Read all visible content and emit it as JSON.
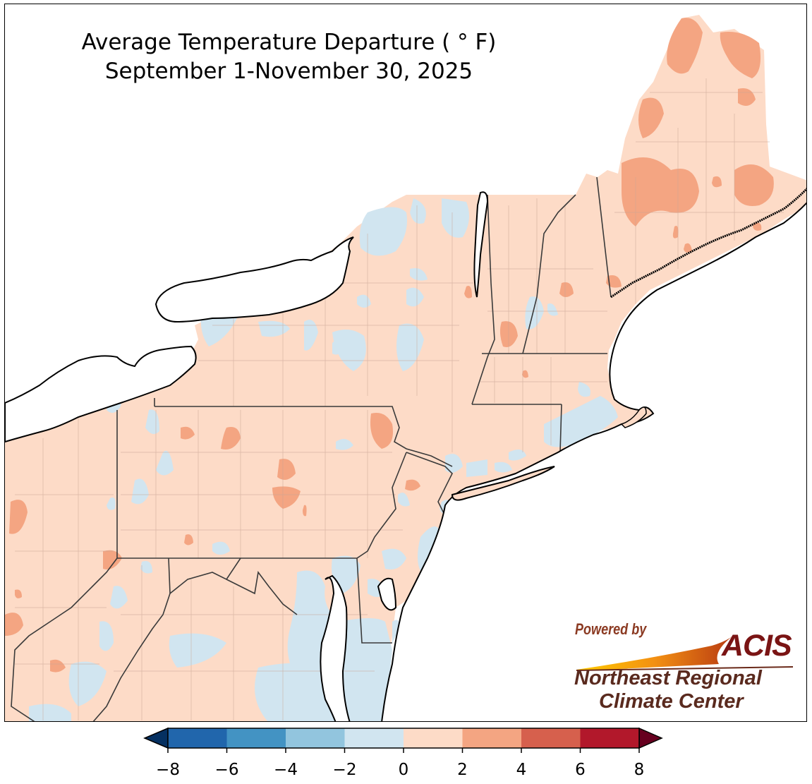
{
  "title": {
    "line1": "Average Temperature Departure ( ° F)",
    "line2": "September 1-November 30, 2025"
  },
  "colorbar": {
    "ticks": [
      "−8",
      "−6",
      "−4",
      "−2",
      "0",
      "2",
      "4",
      "6",
      "8"
    ],
    "tick_values": [
      -8,
      -6,
      -4,
      -2,
      0,
      2,
      4,
      6,
      8
    ],
    "colors": [
      "#2166ac",
      "#4393c3",
      "#92c5de",
      "#d1e5f0",
      "#fddbc7",
      "#f4a582",
      "#d6604d",
      "#b2182b"
    ],
    "extend_low_color": "#053061",
    "extend_high_color": "#67001f"
  },
  "legend_bins": [
    {
      "range": "< -8",
      "color": "#053061"
    },
    {
      "range": "-8 to -6",
      "color": "#2166ac"
    },
    {
      "range": "-6 to -4",
      "color": "#4393c3"
    },
    {
      "range": "-4 to -2",
      "color": "#92c5de"
    },
    {
      "range": "-2 to 0",
      "color": "#d1e5f0"
    },
    {
      "range": "0 to 2",
      "color": "#fddbc7"
    },
    {
      "range": "2 to 4",
      "color": "#f4a582"
    },
    {
      "range": "4 to 6",
      "color": "#d6604d"
    },
    {
      "range": "6 to 8",
      "color": "#b2182b"
    },
    {
      "range": "> 8",
      "color": "#67001f"
    }
  ],
  "map": {
    "region": "Northeast United States",
    "dominant_category": "0 to 2",
    "secondary_categories": [
      "-2 to 0",
      "2 to 4"
    ]
  },
  "logo": {
    "powered_by": "Powered by",
    "brand": "ACIS",
    "org_line1": "Northeast Regional",
    "org_line2": "Climate Center"
  }
}
